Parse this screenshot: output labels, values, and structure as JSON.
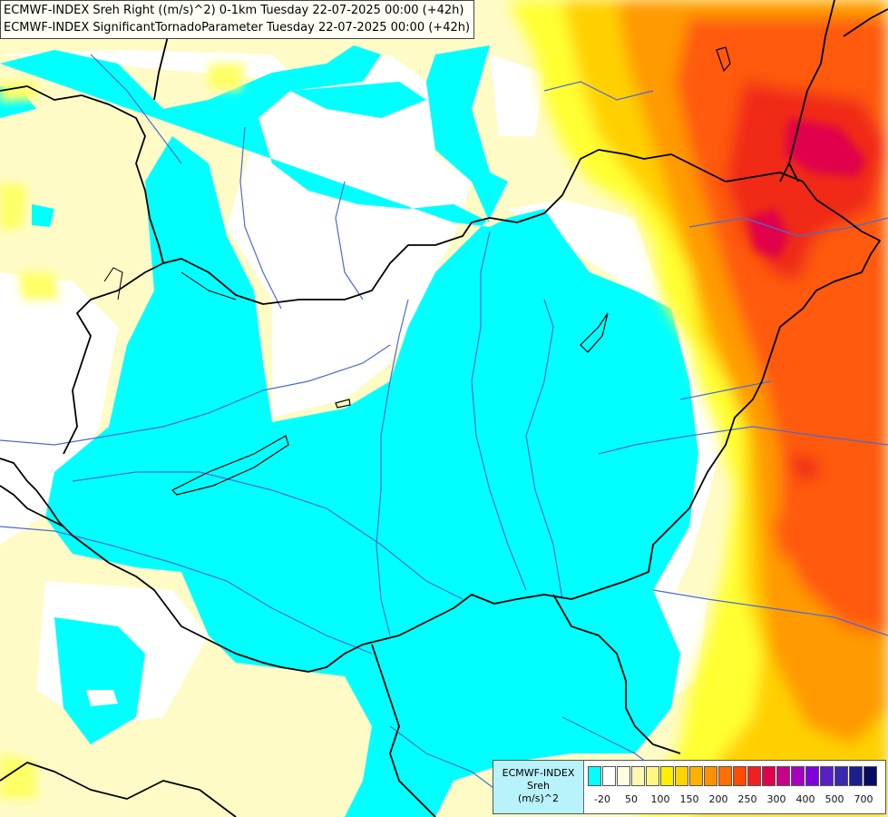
{
  "titles": {
    "line1": "ECMWF-INDEX Sreh Right ((m/s)^2) 0-1km Tuesday 22-07-2025 00:00 (+42h)",
    "line2": "ECMWF-INDEX SignificantTornadoParameter Tuesday 22-07-2025 00:00 (+42h)"
  },
  "legend": {
    "source": "ECMWF-INDEX",
    "variable": "Sreh",
    "unit": "(m/s)^2",
    "tick_labels": [
      "-20",
      "50",
      "100",
      "150",
      "200",
      "250",
      "300",
      "400",
      "500",
      "700"
    ],
    "colors": [
      "#00ffff",
      "#ffffff",
      "#fffde0",
      "#fff8b0",
      "#fff580",
      "#ffee00",
      "#ffd400",
      "#ffb000",
      "#ff9000",
      "#ff6e00",
      "#ff4a00",
      "#f02020",
      "#e0004c",
      "#c8008c",
      "#a800c0",
      "#8000e0",
      "#5a1ec8",
      "#3c28b0",
      "#1e1e8c",
      "#0a0a64"
    ]
  },
  "palette": {
    "cyan": "#00ffff",
    "white": "#ffffff",
    "pale_yellow": "#fffbc6",
    "yellow": "#ffff33",
    "gold": "#ffd000",
    "orange": "#ff9a00",
    "red_orange": "#ff5a0a",
    "red": "#f02a14",
    "crimson": "#e0004c",
    "border": "#000000",
    "river": "#4a6bd6"
  },
  "icons": [
    "map-background"
  ]
}
